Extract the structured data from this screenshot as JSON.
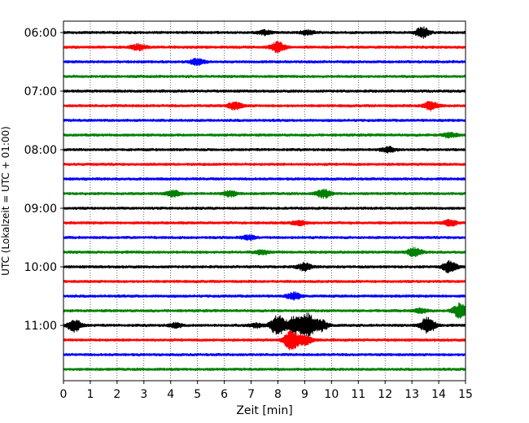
{
  "chart_data": {
    "type": "line",
    "title": "",
    "xlabel": "Zeit  [min]",
    "ylabel": "UTC (Lokalzeit = UTC + 01:00)",
    "xlim": [
      0,
      15
    ],
    "x_ticks": [
      0,
      1,
      2,
      3,
      4,
      5,
      6,
      7,
      8,
      9,
      10,
      11,
      12,
      13,
      14,
      15
    ],
    "y_tick_labels": [
      "06:00",
      "07:00",
      "08:00",
      "09:00",
      "10:00",
      "11:00"
    ],
    "grid": "vertical dotted",
    "legend": "none",
    "line_colors": [
      "#000000",
      "#ff0000",
      "#0000ff",
      "#008000"
    ],
    "traces": [
      {
        "start": "06:00",
        "events": [
          [
            13.4,
            6
          ],
          [
            7.5,
            2.5
          ],
          [
            9.1,
            2.5
          ]
        ]
      },
      {
        "start": "06:15",
        "events": [
          [
            8.0,
            6
          ],
          [
            2.8,
            3.5
          ]
        ]
      },
      {
        "start": "06:30",
        "events": [
          [
            5.0,
            4
          ]
        ]
      },
      {
        "start": "06:45",
        "events": []
      },
      {
        "start": "07:00",
        "events": []
      },
      {
        "start": "07:15",
        "events": [
          [
            6.4,
            4.5
          ],
          [
            13.7,
            5.5
          ]
        ]
      },
      {
        "start": "07:30",
        "events": []
      },
      {
        "start": "07:45",
        "events": [
          [
            14.4,
            3
          ]
        ]
      },
      {
        "start": "08:00",
        "events": [
          [
            12.1,
            3
          ]
        ]
      },
      {
        "start": "08:15",
        "events": []
      },
      {
        "start": "08:30",
        "events": []
      },
      {
        "start": "08:45",
        "events": [
          [
            4.1,
            3.5
          ],
          [
            6.2,
            3.5
          ],
          [
            9.7,
            5
          ]
        ]
      },
      {
        "start": "09:00",
        "events": []
      },
      {
        "start": "09:15",
        "events": [
          [
            14.4,
            4
          ],
          [
            8.8,
            2.5
          ]
        ]
      },
      {
        "start": "09:30",
        "events": [
          [
            6.9,
            2.5
          ]
        ]
      },
      {
        "start": "09:45",
        "events": [
          [
            7.4,
            2.5
          ],
          [
            13.1,
            5
          ]
        ]
      },
      {
        "start": "10:00",
        "events": [
          [
            9.0,
            4.5
          ],
          [
            14.4,
            7
          ]
        ]
      },
      {
        "start": "10:15",
        "events": []
      },
      {
        "start": "10:30",
        "events": [
          [
            8.6,
            4
          ]
        ]
      },
      {
        "start": "10:45",
        "events": [
          [
            14.8,
            9
          ],
          [
            13.3,
            2.5
          ]
        ]
      },
      {
        "start": "11:00",
        "events": [
          [
            0.4,
            7
          ],
          [
            8.0,
            13
          ],
          [
            9.1,
            15
          ],
          [
            8.6,
            10
          ],
          [
            9.6,
            7
          ],
          [
            13.6,
            10
          ],
          [
            4.2,
            2.5
          ],
          [
            7.2,
            2.5
          ]
        ]
      },
      {
        "start": "11:15",
        "events": [
          [
            8.5,
            12
          ],
          [
            9.0,
            6
          ]
        ]
      },
      {
        "start": "11:30",
        "events": []
      },
      {
        "start": "11:45",
        "events": []
      }
    ]
  }
}
